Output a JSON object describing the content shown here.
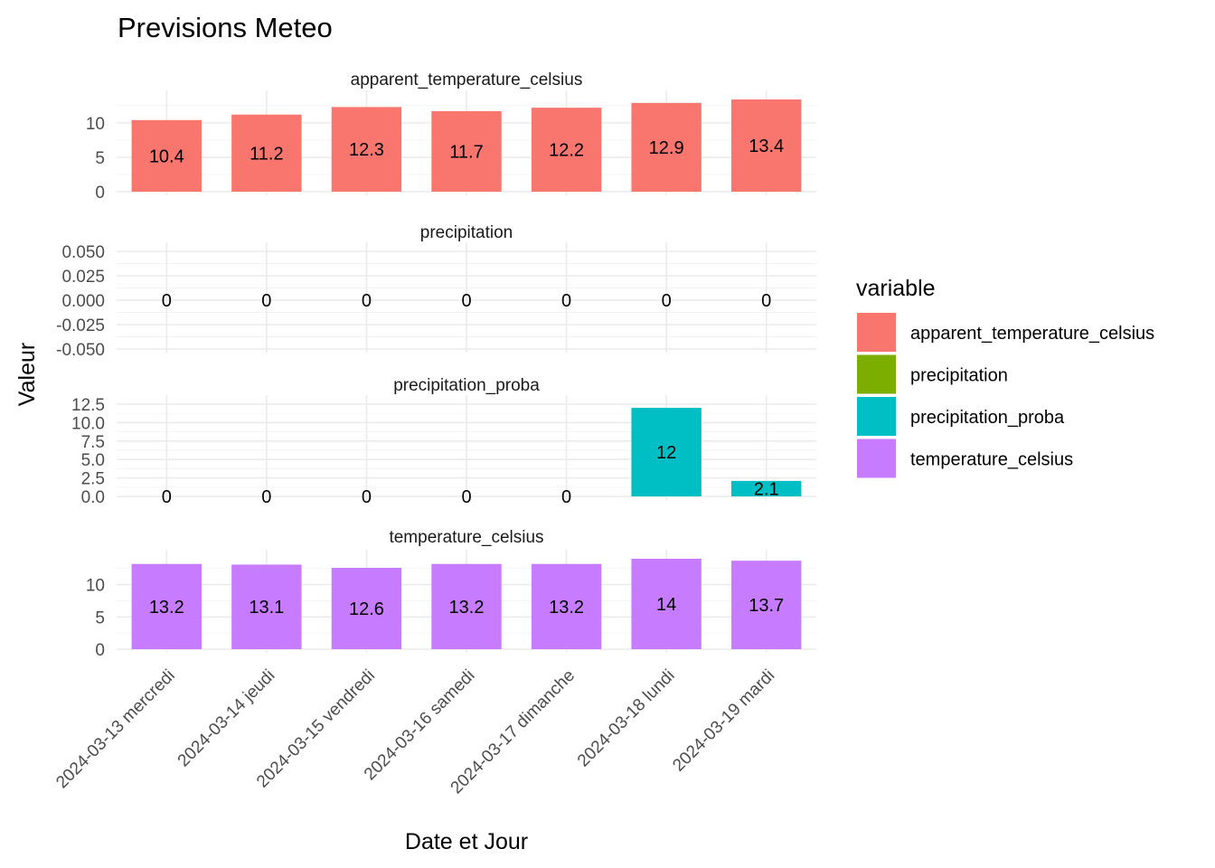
{
  "chart_data": {
    "type": "bar",
    "title": "Previsions Meteo",
    "xlabel": "Date et Jour",
    "ylabel": "Valeur",
    "categories": [
      "2024-03-13 mercredi",
      "2024-03-14 jeudi",
      "2024-03-15 vendredi",
      "2024-03-16 samedi",
      "2024-03-17 dimanche",
      "2024-03-18 lundi",
      "2024-03-19 mardi"
    ],
    "legend": {
      "title": "variable",
      "placement": "right"
    },
    "grid": true,
    "facets": [
      {
        "name": "apparent_temperature_celsius",
        "color": "#F8766D",
        "values": [
          10.4,
          11.2,
          12.3,
          11.7,
          12.2,
          12.9,
          13.4
        ],
        "ylim": [
          0,
          13.4
        ],
        "yticks": [
          {
            "v": 0,
            "label": "0"
          },
          {
            "v": 5,
            "label": "5"
          },
          {
            "v": 10,
            "label": "10"
          }
        ]
      },
      {
        "name": "precipitation",
        "color": "#7CAE00",
        "values": [
          0,
          0,
          0,
          0,
          0,
          0,
          0
        ],
        "ylim": [
          -0.05,
          0.05
        ],
        "yticks": [
          {
            "v": -0.05,
            "label": "-0.050"
          },
          {
            "v": -0.025,
            "label": "-0.025"
          },
          {
            "v": 0,
            "label": "0.000"
          },
          {
            "v": 0.025,
            "label": "0.025"
          },
          {
            "v": 0.05,
            "label": "0.050"
          }
        ]
      },
      {
        "name": "precipitation_proba",
        "color": "#00BFC4",
        "values": [
          0,
          0,
          0,
          0,
          0,
          12,
          2.1
        ],
        "ylim": [
          0,
          12.5
        ],
        "yticks": [
          {
            "v": 0,
            "label": "0.0"
          },
          {
            "v": 2.5,
            "label": "2.5"
          },
          {
            "v": 5,
            "label": "5.0"
          },
          {
            "v": 7.5,
            "label": "7.5"
          },
          {
            "v": 10,
            "label": "10.0"
          },
          {
            "v": 12.5,
            "label": "12.5"
          }
        ]
      },
      {
        "name": "temperature_celsius",
        "color": "#C77CFF",
        "values": [
          13.2,
          13.1,
          12.6,
          13.2,
          13.2,
          14,
          13.7
        ],
        "ylim": [
          0,
          14
        ],
        "yticks": [
          {
            "v": 0,
            "label": "0"
          },
          {
            "v": 5,
            "label": "5"
          },
          {
            "v": 10,
            "label": "10"
          }
        ]
      }
    ]
  }
}
